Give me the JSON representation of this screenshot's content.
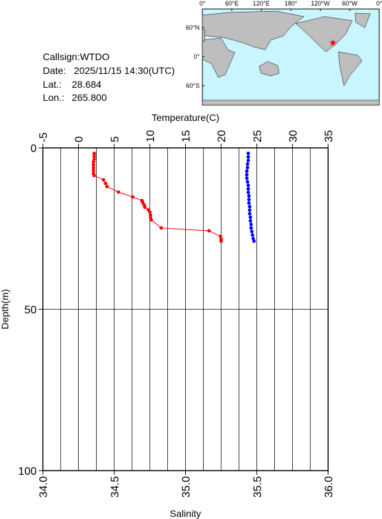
{
  "chart_data": {
    "type": "profile",
    "info": {
      "callsign": "Callsign:WTDO",
      "date_label": "Date:",
      "date": "2025/11/15 14:30(UTC)",
      "lat_label": "Lat.:",
      "lat": 28.684,
      "lon_label": "Lon.:",
      "lon": {
        "value": 265.8,
        "label": "265.800"
      }
    },
    "map": {
      "lon_labels": [
        "0°",
        "60°E",
        "120°E",
        "180°",
        "120°W",
        "60°W",
        "0°"
      ],
      "lat_labels": [
        "60°N",
        "0°",
        "60°S"
      ],
      "marker_color": "#ff0000"
    },
    "xlabel": "Temperature(C)",
    "x2label": "Salinity",
    "ylabel": "Depth(m)",
    "xlim": [
      -5,
      35
    ],
    "xticks": [
      -5,
      0,
      5,
      10,
      15,
      20,
      25,
      30,
      35
    ],
    "xminor": [
      -2.5,
      2.5,
      7.5,
      12.5,
      17.5,
      22.5,
      27.5,
      32.5
    ],
    "x2lim": [
      34,
      36
    ],
    "x2ticks": [
      {
        "value": 34,
        "label": "34.0"
      },
      {
        "value": 34.5,
        "label": "34.5"
      },
      {
        "value": 35,
        "label": "35.0"
      },
      {
        "value": 35.5,
        "label": "35.5"
      },
      {
        "value": 36,
        "label": "36.0"
      }
    ],
    "ylim": [
      0,
      100
    ],
    "yticks": [
      0,
      50,
      100
    ],
    "inverted_y": true,
    "grid": true,
    "series": [
      {
        "color": "#ff0000",
        "axis": "x",
        "depth": [
          1.7,
          2.6,
          3.5,
          4.4,
          5.3,
          6.2,
          7.1,
          8.0,
          8.6,
          9.9,
          11.0,
          12.0,
          13.7,
          15.2,
          16.3,
          16.9,
          17.7,
          18.4,
          19.2,
          19.9,
          20.8,
          21.6,
          22.3,
          24.8,
          25.7,
          27.4,
          28.3,
          28.9
        ],
        "values": [
          2.2,
          2.2,
          2.2,
          2.1,
          2.1,
          2.1,
          2.1,
          2.1,
          2.2,
          3.5,
          3.8,
          4.0,
          5.6,
          7.6,
          8.9,
          9.0,
          9.2,
          9.3,
          9.8,
          10.0,
          10.1,
          10.1,
          10.2,
          11.6,
          18.3,
          19.9,
          20.0,
          20.0
        ]
      },
      {
        "color": "#0000ff",
        "axis": "x2",
        "depth": [
          1.7,
          2.8,
          3.9,
          5.0,
          6.1,
          7.2,
          8.3,
          9.4,
          10.5,
          11.6,
          12.7,
          13.8,
          14.9,
          16.0,
          17.1,
          18.2,
          19.3,
          20.4,
          21.5,
          22.6,
          23.7,
          24.8,
          25.9,
          27.0,
          28.1,
          28.9
        ],
        "values": [
          35.44,
          35.44,
          35.44,
          35.435,
          35.435,
          35.43,
          35.43,
          35.43,
          35.435,
          35.44,
          35.44,
          35.44,
          35.445,
          35.445,
          35.445,
          35.45,
          35.45,
          35.45,
          35.455,
          35.455,
          35.46,
          35.46,
          35.465,
          35.47,
          35.475,
          35.48
        ]
      }
    ]
  }
}
